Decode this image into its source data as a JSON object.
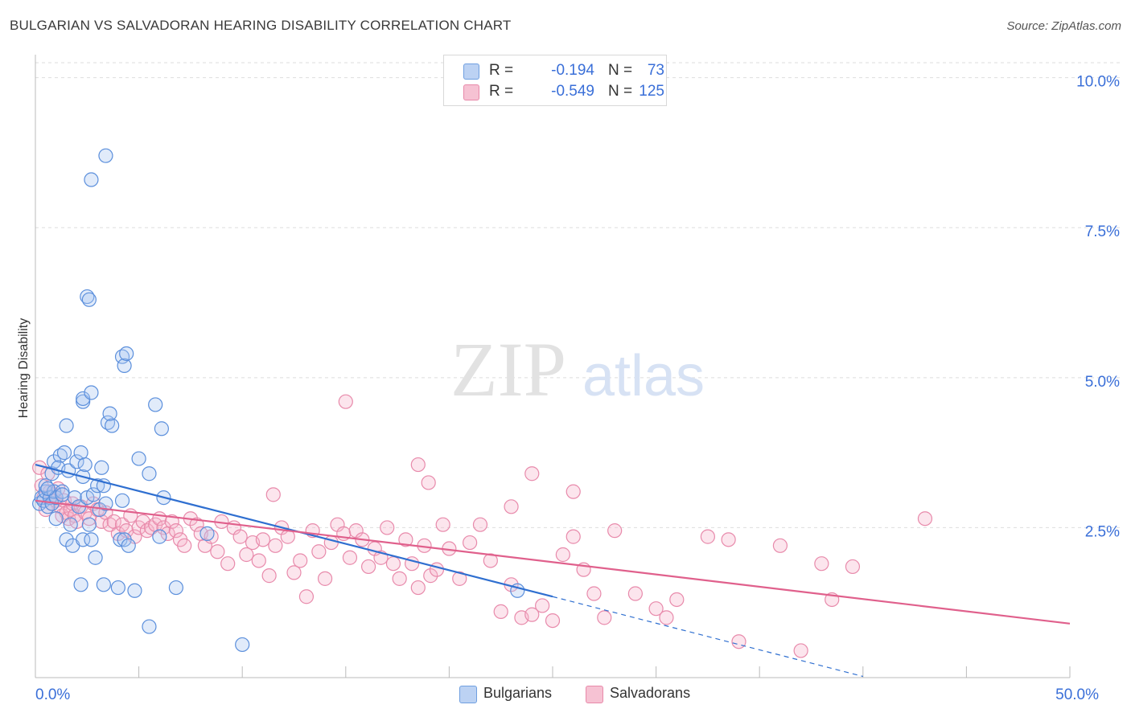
{
  "title": "BULGARIAN VS SALVADORAN HEARING DISABILITY CORRELATION CHART",
  "source": "Source: ZipAtlas.com",
  "watermark": {
    "zip": "ZIP",
    "atlas": "atlas"
  },
  "legend_top": [
    {
      "label": "R =",
      "r": "-0.194",
      "n_label": "N =",
      "n": "73",
      "color": "#6f9fe0",
      "fill": "#bcd2f3"
    },
    {
      "label": "R =",
      "r": "-0.549",
      "n_label": "N =",
      "n": "125",
      "color": "#e889a9",
      "fill": "#f6c2d3"
    }
  ],
  "legend_bottom": [
    {
      "label": "Bulgarians",
      "color": "#6f9fe0",
      "fill": "#bcd2f3"
    },
    {
      "label": "Salvadorans",
      "color": "#e889a9",
      "fill": "#f6c2d3"
    }
  ],
  "colors": {
    "blue_stroke": "#5b8fdc",
    "blue_line": "#2f6fd0",
    "pink_stroke": "#e88aab",
    "pink_line": "#e0608c",
    "tick_text": "#3a6fd8",
    "grid": "#dddddd"
  },
  "chart_data": {
    "type": "scatter",
    "title": "BULGARIAN VS SALVADORAN HEARING DISABILITY CORRELATION CHART",
    "xlabel": "",
    "ylabel": "Hearing Disability",
    "xlim": [
      0,
      50
    ],
    "ylim": [
      0,
      10.25
    ],
    "x_tick_labels": [
      {
        "value": 0,
        "label": "0.0%"
      },
      {
        "value": 50,
        "label": "50.0%"
      }
    ],
    "x_minor_ticks": [
      5,
      10,
      15,
      20,
      25,
      30,
      35,
      40,
      45
    ],
    "y_ticks": [
      {
        "value": 2.5,
        "label": "2.5%"
      },
      {
        "value": 5.0,
        "label": "5.0%"
      },
      {
        "value": 7.5,
        "label": "7.5%"
      },
      {
        "value": 10.0,
        "label": "10.0%"
      }
    ],
    "series": [
      {
        "name": "Bulgarians",
        "r": -0.194,
        "n": 73,
        "trend": {
          "x0": 0,
          "y0": 3.55,
          "x1": 25.0,
          "y1": 1.35,
          "dash_x1": 40.0,
          "dash_y1": 0.02
        },
        "points": [
          [
            0.2,
            2.9
          ],
          [
            0.3,
            3.0
          ],
          [
            0.4,
            2.95
          ],
          [
            0.5,
            3.1
          ],
          [
            0.6,
            2.85
          ],
          [
            0.5,
            3.2
          ],
          [
            0.7,
            3.0
          ],
          [
            0.8,
            2.9
          ],
          [
            0.9,
            3.1
          ],
          [
            1.0,
            3.0
          ],
          [
            0.8,
            3.4
          ],
          [
            0.9,
            3.6
          ],
          [
            1.2,
            3.7
          ],
          [
            1.1,
            3.5
          ],
          [
            1.3,
            3.1
          ],
          [
            1.4,
            3.75
          ],
          [
            1.5,
            2.3
          ],
          [
            1.3,
            3.05
          ],
          [
            1.7,
            2.55
          ],
          [
            1.6,
            3.45
          ],
          [
            1.0,
            2.65
          ],
          [
            0.6,
            3.15
          ],
          [
            1.8,
            2.2
          ],
          [
            1.9,
            3.0
          ],
          [
            2.1,
            2.85
          ],
          [
            2.0,
            3.6
          ],
          [
            2.2,
            3.75
          ],
          [
            2.3,
            3.35
          ],
          [
            2.4,
            3.55
          ],
          [
            2.3,
            2.3
          ],
          [
            2.5,
            3.0
          ],
          [
            2.6,
            2.55
          ],
          [
            2.7,
            2.3
          ],
          [
            2.8,
            3.05
          ],
          [
            2.9,
            2.0
          ],
          [
            3.0,
            3.2
          ],
          [
            3.1,
            2.8
          ],
          [
            3.2,
            3.5
          ],
          [
            3.3,
            3.2
          ],
          [
            3.4,
            2.9
          ],
          [
            1.5,
            4.2
          ],
          [
            2.3,
            4.6
          ],
          [
            2.3,
            4.65
          ],
          [
            2.7,
            4.75
          ],
          [
            3.5,
            4.25
          ],
          [
            3.7,
            4.2
          ],
          [
            3.6,
            4.4
          ],
          [
            4.2,
            5.35
          ],
          [
            4.3,
            5.2
          ],
          [
            4.4,
            5.4
          ],
          [
            4.1,
            2.3
          ],
          [
            4.2,
            2.95
          ],
          [
            4.3,
            2.3
          ],
          [
            4.5,
            2.2
          ],
          [
            4.8,
            1.45
          ],
          [
            5.0,
            3.65
          ],
          [
            5.5,
            3.4
          ],
          [
            5.8,
            4.55
          ],
          [
            6.1,
            4.15
          ],
          [
            6.2,
            3.0
          ],
          [
            6.0,
            2.35
          ],
          [
            2.5,
            6.35
          ],
          [
            2.6,
            6.3
          ],
          [
            2.7,
            8.3
          ],
          [
            3.4,
            8.7
          ],
          [
            2.2,
            1.55
          ],
          [
            3.3,
            1.55
          ],
          [
            4.0,
            1.5
          ],
          [
            5.5,
            0.85
          ],
          [
            6.8,
            1.5
          ],
          [
            10.0,
            0.55
          ],
          [
            8.3,
            2.4
          ],
          [
            23.3,
            1.45
          ]
        ]
      },
      {
        "name": "Salvadorans",
        "r": -0.549,
        "n": 125,
        "trend": {
          "x0": 0,
          "y0": 2.95,
          "x1": 50.0,
          "y1": 0.9
        },
        "points": [
          [
            0.2,
            3.5
          ],
          [
            0.3,
            3.2
          ],
          [
            0.4,
            3.0
          ],
          [
            0.5,
            2.8
          ],
          [
            0.6,
            3.4
          ],
          [
            0.7,
            3.1
          ],
          [
            0.8,
            2.9
          ],
          [
            0.9,
            3.05
          ],
          [
            1.0,
            2.95
          ],
          [
            1.1,
            3.15
          ],
          [
            1.2,
            2.85
          ],
          [
            1.3,
            2.7
          ],
          [
            1.4,
            2.95
          ],
          [
            1.5,
            2.75
          ],
          [
            1.6,
            2.65
          ],
          [
            1.7,
            2.8
          ],
          [
            1.8,
            2.9
          ],
          [
            1.9,
            2.7
          ],
          [
            2.0,
            2.6
          ],
          [
            2.2,
            2.85
          ],
          [
            2.4,
            2.75
          ],
          [
            2.6,
            2.65
          ],
          [
            2.8,
            2.9
          ],
          [
            3.0,
            2.8
          ],
          [
            3.2,
            2.6
          ],
          [
            3.4,
            2.75
          ],
          [
            3.6,
            2.55
          ],
          [
            3.8,
            2.6
          ],
          [
            4.0,
            2.4
          ],
          [
            4.2,
            2.55
          ],
          [
            4.4,
            2.45
          ],
          [
            4.6,
            2.7
          ],
          [
            4.8,
            2.35
          ],
          [
            5.0,
            2.5
          ],
          [
            5.2,
            2.6
          ],
          [
            5.4,
            2.45
          ],
          [
            5.6,
            2.5
          ],
          [
            5.8,
            2.55
          ],
          [
            6.0,
            2.65
          ],
          [
            6.2,
            2.5
          ],
          [
            6.4,
            2.4
          ],
          [
            6.6,
            2.6
          ],
          [
            6.8,
            2.45
          ],
          [
            7.0,
            2.3
          ],
          [
            7.2,
            2.2
          ],
          [
            7.5,
            2.65
          ],
          [
            7.8,
            2.55
          ],
          [
            8.0,
            2.4
          ],
          [
            8.2,
            2.2
          ],
          [
            8.5,
            2.35
          ],
          [
            8.8,
            2.1
          ],
          [
            9.0,
            2.6
          ],
          [
            9.3,
            1.9
          ],
          [
            9.6,
            2.5
          ],
          [
            9.9,
            2.35
          ],
          [
            10.2,
            2.05
          ],
          [
            10.5,
            2.25
          ],
          [
            10.8,
            1.95
          ],
          [
            11.0,
            2.3
          ],
          [
            11.3,
            1.7
          ],
          [
            11.6,
            2.2
          ],
          [
            11.9,
            2.5
          ],
          [
            12.2,
            2.35
          ],
          [
            12.5,
            1.75
          ],
          [
            12.8,
            1.95
          ],
          [
            13.1,
            1.35
          ],
          [
            13.4,
            2.45
          ],
          [
            13.7,
            2.1
          ],
          [
            14.0,
            1.65
          ],
          [
            14.3,
            2.25
          ],
          [
            14.6,
            2.55
          ],
          [
            14.9,
            2.4
          ],
          [
            15.2,
            2.0
          ],
          [
            15.5,
            2.45
          ],
          [
            15.8,
            2.3
          ],
          [
            16.1,
            1.85
          ],
          [
            16.4,
            2.15
          ],
          [
            16.7,
            2.0
          ],
          [
            17.0,
            2.5
          ],
          [
            17.3,
            1.9
          ],
          [
            17.6,
            1.65
          ],
          [
            17.9,
            2.3
          ],
          [
            18.2,
            1.9
          ],
          [
            18.5,
            1.5
          ],
          [
            18.8,
            2.2
          ],
          [
            19.1,
            1.7
          ],
          [
            19.4,
            1.8
          ],
          [
            19.7,
            2.55
          ],
          [
            20.0,
            2.15
          ],
          [
            20.5,
            1.65
          ],
          [
            21.0,
            2.25
          ],
          [
            21.5,
            2.55
          ],
          [
            22.0,
            1.95
          ],
          [
            22.5,
            1.1
          ],
          [
            23.0,
            1.55
          ],
          [
            23.5,
            1.0
          ],
          [
            24.0,
            1.05
          ],
          [
            24.5,
            1.2
          ],
          [
            25.0,
            0.95
          ],
          [
            25.5,
            2.05
          ],
          [
            26.0,
            2.35
          ],
          [
            26.5,
            1.8
          ],
          [
            27.0,
            1.4
          ],
          [
            27.5,
            1.0
          ],
          [
            28.0,
            2.45
          ],
          [
            29.0,
            1.4
          ],
          [
            30.0,
            1.15
          ],
          [
            30.5,
            1.0
          ],
          [
            31.0,
            1.3
          ],
          [
            32.5,
            2.35
          ],
          [
            33.5,
            2.3
          ],
          [
            34.0,
            0.6
          ],
          [
            36.0,
            2.2
          ],
          [
            37.0,
            0.45
          ],
          [
            38.0,
            1.9
          ],
          [
            38.5,
            1.3
          ],
          [
            39.5,
            1.85
          ],
          [
            43.0,
            2.65
          ],
          [
            15.0,
            4.6
          ],
          [
            11.5,
            3.05
          ],
          [
            18.5,
            3.55
          ],
          [
            19.0,
            3.25
          ],
          [
            23.0,
            2.85
          ],
          [
            24.0,
            3.4
          ],
          [
            26.0,
            3.1
          ]
        ]
      }
    ]
  }
}
